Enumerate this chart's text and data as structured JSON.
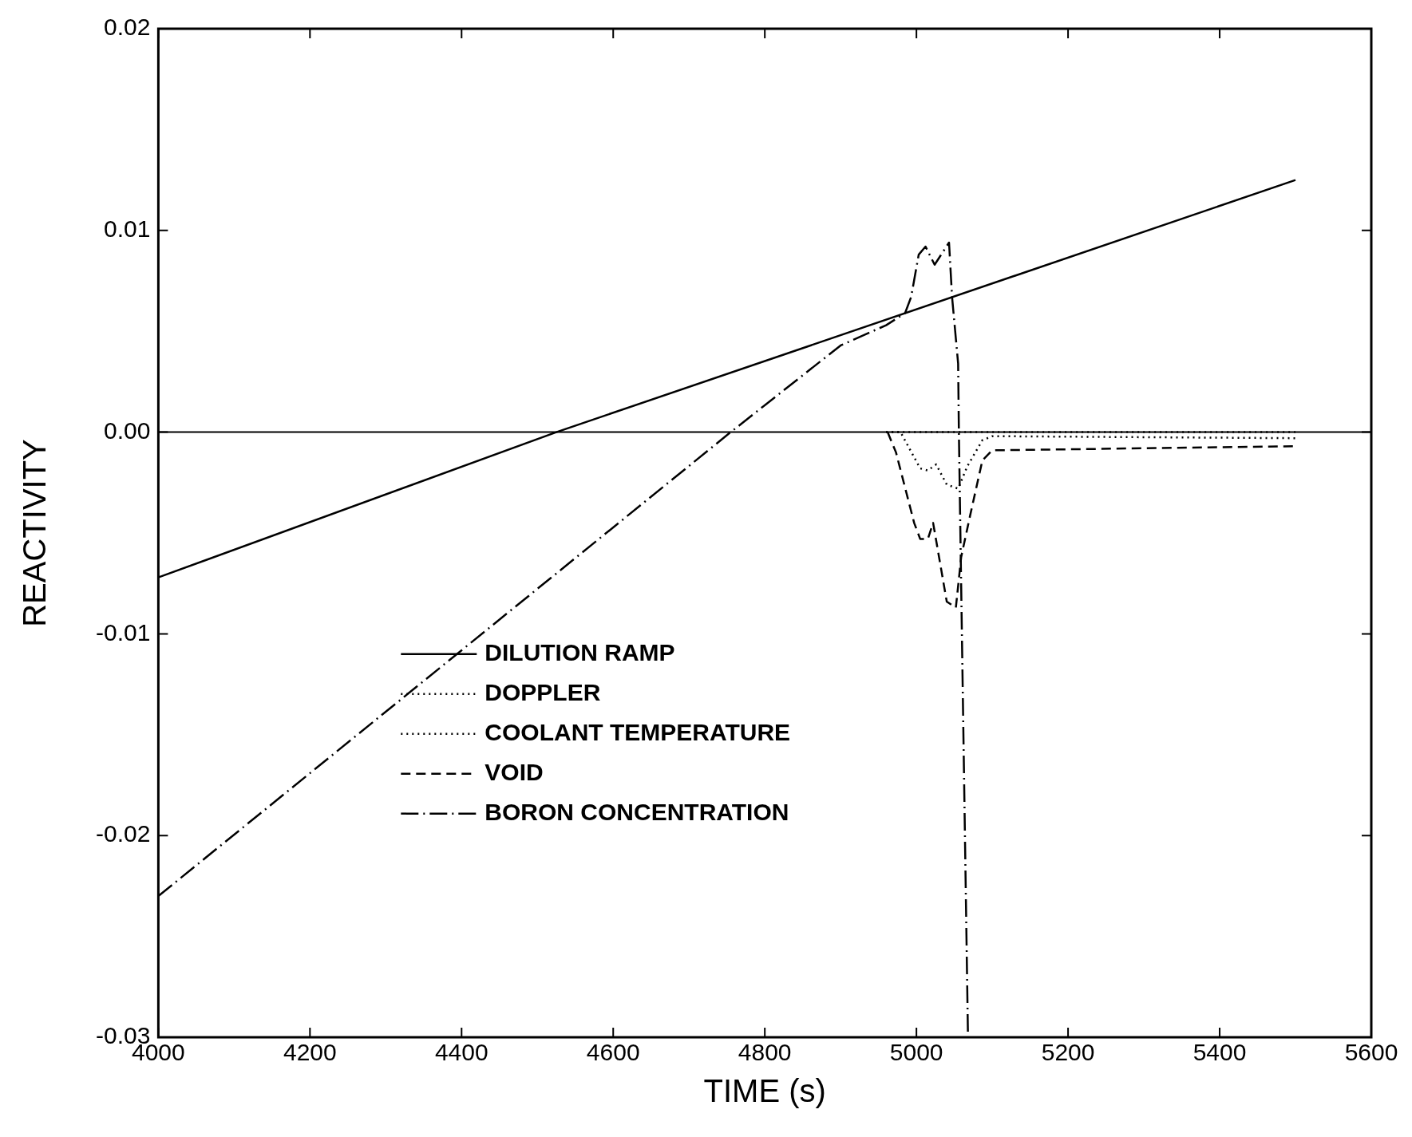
{
  "chart_data": {
    "type": "line",
    "xlabel": "TIME (s)",
    "ylabel": "REACTIVITY",
    "xlim": [
      4000,
      5600
    ],
    "xticks": [
      4000,
      4200,
      4400,
      4600,
      4800,
      5000,
      5200,
      5400,
      5600
    ],
    "ylim": [
      -0.03,
      0.02
    ],
    "yticks": [
      {
        "value": -0.03,
        "label": "-0.03"
      },
      {
        "value": -0.02,
        "label": "-0.02"
      },
      {
        "value": -0.01,
        "label": "-0.01"
      },
      {
        "value": 0,
        "label": "0.00"
      },
      {
        "value": 0.01,
        "label": "0.01"
      },
      {
        "value": 0.02,
        "label": "0.02"
      }
    ],
    "grid": false,
    "legend": "bottom left",
    "marker": "none",
    "ref_lines": [
      {
        "axis": "y",
        "value": 0,
        "color": "#000000",
        "line_style": "solid"
      }
    ],
    "series": [
      {
        "name": "DILUTION RAMP",
        "color": "#000000",
        "line_style": "solid",
        "x": [
          4000,
          4525,
          5500
        ],
        "values": [
          -0.0072,
          0,
          0.0125
        ]
      },
      {
        "name": "DOPPLER",
        "color": "#000000",
        "line_style": "dotted",
        "x": [
          4960,
          4979,
          5005,
          5015,
          5026,
          5040,
          5055,
          5067,
          5087,
          5100,
          5500
        ],
        "values": [
          0,
          0,
          -0.0018,
          -0.0019,
          -0.0016,
          -0.0026,
          -0.0028,
          -0.0017,
          -0.0004,
          -0.0002,
          -0.0003
        ]
      },
      {
        "name": "COOLANT TEMPERATURE",
        "color": "#000000",
        "line_style": "dotted",
        "x": [
          4960,
          5500
        ],
        "values": [
          0,
          0
        ]
      },
      {
        "name": "VOID",
        "color": "#000000",
        "line_style": "dashed",
        "x": [
          4962,
          4973,
          4997,
          5005,
          5015,
          5022,
          5040,
          5052,
          5059,
          5071,
          5087,
          5100,
          5500
        ],
        "values": [
          0,
          -0.001,
          -0.0045,
          -0.0053,
          -0.0053,
          -0.0045,
          -0.0084,
          -0.0087,
          -0.0062,
          -0.0041,
          -0.0014,
          -0.0009,
          -0.0007
        ]
      },
      {
        "name": "BORON CONCENTRATION",
        "color": "#000000",
        "line_style": "dashdot",
        "x": [
          4000,
          4755,
          4900,
          4960,
          4985,
          4993,
          5003,
          5012,
          5024,
          5043,
          5047,
          5055,
          5056,
          5059,
          5068
        ],
        "values": [
          -0.023,
          0,
          0.0043,
          0.0053,
          0.0059,
          0.0067,
          0.0088,
          0.0092,
          0.0083,
          0.0094,
          0.0067,
          0.0034,
          0,
          -0.0076,
          -0.03
        ]
      }
    ]
  }
}
